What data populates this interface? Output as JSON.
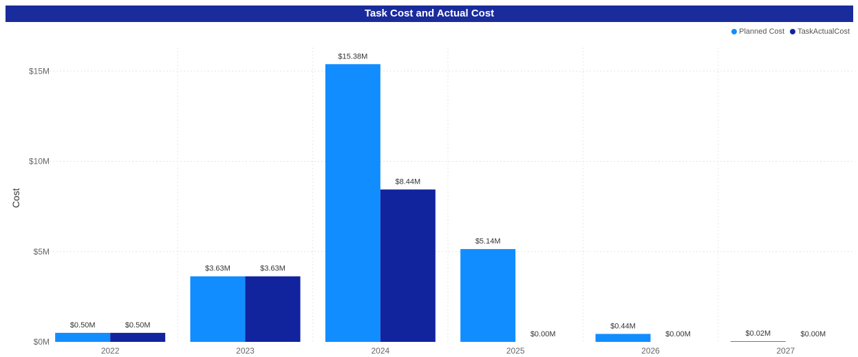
{
  "chart_data": {
    "type": "bar",
    "title": "Task Cost and Actual Cost",
    "xlabel": "",
    "ylabel": "Cost",
    "categories": [
      "2022",
      "2023",
      "2024",
      "2025",
      "2026",
      "2027"
    ],
    "series": [
      {
        "name": "Planned Cost",
        "color": "#118dff",
        "values": [
          0.5,
          3.63,
          15.38,
          5.14,
          0.44,
          0.02
        ],
        "labels": [
          "$0.50M",
          "$3.63M",
          "$15.38M",
          "$5.14M",
          "$0.44M",
          "$0.02M"
        ]
      },
      {
        "name": "TaskActualCost",
        "color": "#12239e",
        "values": [
          0.5,
          3.63,
          8.44,
          0.0,
          0.0,
          0.0
        ],
        "labels": [
          "$0.50M",
          "$3.63M",
          "$8.44M",
          "$0.00M",
          "$0.00M",
          "$0.00M"
        ]
      }
    ],
    "ylim": [
      0,
      16
    ],
    "y_ticks": [
      0,
      5,
      10,
      15
    ],
    "y_tick_labels": [
      "$0M",
      "$5M",
      "$10M",
      "$15M"
    ],
    "grid": true,
    "legend_position": "top-right"
  },
  "colors": {
    "title_bar": "#1a2c9c",
    "planned": "#118dff",
    "actual": "#12239e"
  }
}
